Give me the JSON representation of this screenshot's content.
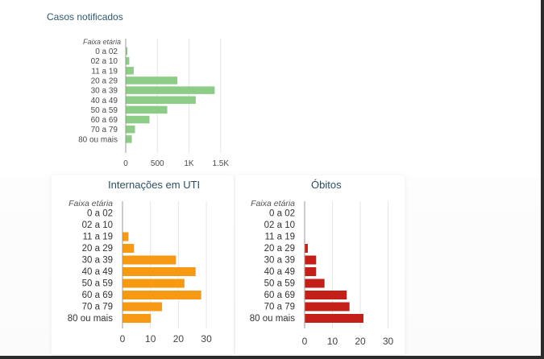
{
  "chart_data": [
    {
      "type": "bar",
      "orientation": "horizontal",
      "title": "Casos notificados",
      "category_header": "Faixa etária",
      "categories": [
        "0 a 02",
        "02 a 10",
        "11 a 19",
        "20 a 29",
        "30 a 39",
        "40 a 49",
        "50 a 59",
        "60 a 69",
        "70 a 79",
        "80 ou mais"
      ],
      "values": [
        20,
        50,
        120,
        810,
        1400,
        1100,
        650,
        370,
        140,
        90
      ],
      "xlim": [
        0,
        1600
      ],
      "x_ticks": [
        0,
        500,
        1000,
        1500
      ],
      "x_tick_labels": [
        "0",
        "500",
        "1K",
        "1.5K"
      ],
      "color": "#8ccc86",
      "grid": true
    },
    {
      "type": "bar",
      "orientation": "horizontal",
      "title": "Internações em UTI",
      "category_header": "Faixa etária",
      "categories": [
        "0 a 02",
        "02 a 10",
        "11 a 19",
        "20 a 29",
        "30 a 39",
        "40 a 49",
        "50 a 59",
        "60 a 69",
        "70 a 79",
        "80 ou mais"
      ],
      "values": [
        0,
        0,
        2,
        4,
        19,
        26,
        22,
        28,
        14,
        10
      ],
      "xlim": [
        0,
        33
      ],
      "x_ticks": [
        0,
        10,
        20,
        30
      ],
      "x_tick_labels": [
        "0",
        "10",
        "20",
        "30"
      ],
      "color": "#f59a12",
      "grid": true
    },
    {
      "type": "bar",
      "orientation": "horizontal",
      "title": "Óbitos",
      "category_header": "Faixa etária",
      "categories": [
        "0 a 02",
        "02 a 10",
        "11 a 19",
        "20 a 29",
        "30 a 39",
        "40 a 49",
        "50 a 59",
        "60 a 69",
        "70 a 79",
        "80 ou mais"
      ],
      "values": [
        0,
        0,
        0,
        1,
        4,
        4,
        7,
        15,
        16,
        21
      ],
      "xlim": [
        0,
        33
      ],
      "x_ticks": [
        0,
        10,
        20,
        30
      ],
      "x_tick_labels": [
        "0",
        "10",
        "20",
        "30"
      ],
      "color": "#c4201a",
      "grid": true
    }
  ]
}
